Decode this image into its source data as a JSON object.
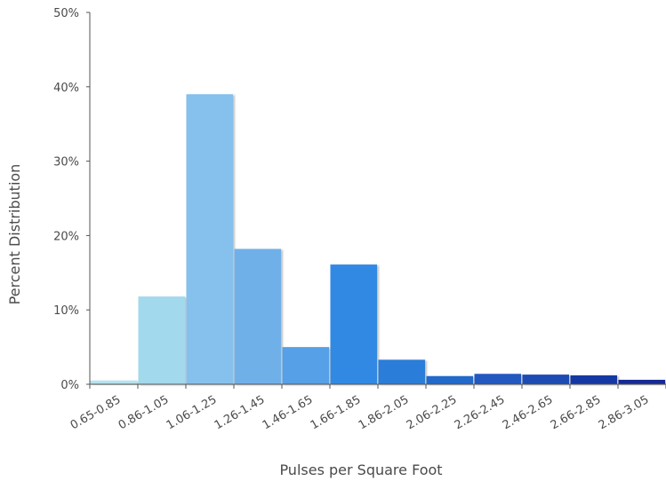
{
  "chart_data": {
    "type": "bar",
    "title": "",
    "xlabel": "Pulses per Square Foot",
    "ylabel": "Percent Distribution",
    "ylim": [
      0,
      50
    ],
    "y_ticks": [
      "0%",
      "10%",
      "20%",
      "30%",
      "40%",
      "50%"
    ],
    "grid": false,
    "legend": "none",
    "categories": [
      "0.65-0.85",
      "0.86-1.05",
      "1.06-1.25",
      "1.26-1.45",
      "1.46-1.65",
      "1.66-1.85",
      "1.86-2.05",
      "2.06-2.25",
      "2.26-2.45",
      "2.46-2.65",
      "2.66-2.85",
      "2.86-3.05"
    ],
    "values": [
      0.5,
      11.8,
      39.0,
      18.2,
      5.0,
      16.1,
      3.3,
      1.1,
      1.4,
      1.3,
      1.2,
      0.6
    ],
    "colors": [
      "#b5e3f0",
      "#a2d9ec",
      "#86c0ec",
      "#6fb0e9",
      "#54a0e6",
      "#3189e3",
      "#2a7dd8",
      "#2369cb",
      "#2059c0",
      "#1c4bb4",
      "#1838a4",
      "#122a94"
    ]
  }
}
